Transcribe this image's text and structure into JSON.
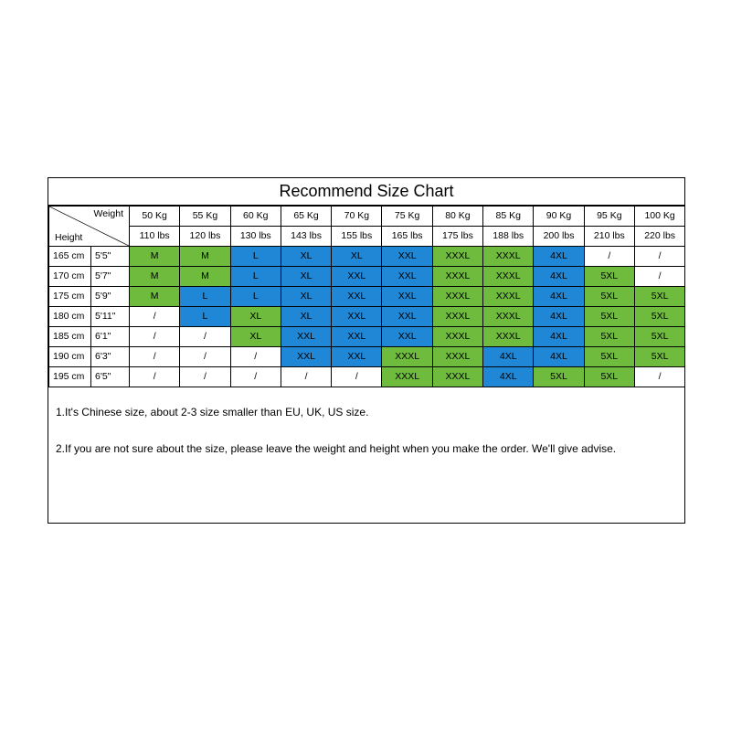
{
  "title": "Recommend Size Chart",
  "header_labels": {
    "weight": "Weight",
    "height": "Height"
  },
  "colors": {
    "green": "#6fbb3d",
    "blue": "#1f87d6",
    "border": "#000000",
    "background": "#ffffff",
    "text": "#000000"
  },
  "typography": {
    "title_fontsize_pt": 14,
    "cell_fontsize_pt": 8,
    "notes_fontsize_pt": 9,
    "font_family": "Arial"
  },
  "weights_kg": [
    "50 Kg",
    "55 Kg",
    "60 Kg",
    "65 Kg",
    "70 Kg",
    "75 Kg",
    "80 Kg",
    "85 Kg",
    "90 Kg",
    "95 Kg",
    "100 Kg"
  ],
  "weights_lbs": [
    "110 lbs",
    "120 lbs",
    "130 lbs",
    "143 lbs",
    "155 lbs",
    "165 lbs",
    "175 lbs",
    "188 lbs",
    "200 lbs",
    "210 lbs",
    "220 lbs"
  ],
  "heights": [
    {
      "cm": "165 cm",
      "ftin": "5'5\""
    },
    {
      "cm": "170 cm",
      "ftin": "5'7\""
    },
    {
      "cm": "175 cm",
      "ftin": "5'9\""
    },
    {
      "cm": "180 cm",
      "ftin": "5'11\""
    },
    {
      "cm": "185 cm",
      "ftin": "6'1\""
    },
    {
      "cm": "190 cm",
      "ftin": "6'3\""
    },
    {
      "cm": "195 cm",
      "ftin": "6'5\""
    }
  ],
  "cells": [
    [
      {
        "v": "M",
        "c": "g"
      },
      {
        "v": "M",
        "c": "g"
      },
      {
        "v": "L",
        "c": "b"
      },
      {
        "v": "XL",
        "c": "b"
      },
      {
        "v": "XL",
        "c": "b"
      },
      {
        "v": "XXL",
        "c": "b"
      },
      {
        "v": "XXXL",
        "c": "g"
      },
      {
        "v": "XXXL",
        "c": "g"
      },
      {
        "v": "4XL",
        "c": "b"
      },
      {
        "v": "/",
        "c": ""
      },
      {
        "v": "/",
        "c": ""
      }
    ],
    [
      {
        "v": "M",
        "c": "g"
      },
      {
        "v": "M",
        "c": "g"
      },
      {
        "v": "L",
        "c": "b"
      },
      {
        "v": "XL",
        "c": "b"
      },
      {
        "v": "XXL",
        "c": "b"
      },
      {
        "v": "XXL",
        "c": "b"
      },
      {
        "v": "XXXL",
        "c": "g"
      },
      {
        "v": "XXXL",
        "c": "g"
      },
      {
        "v": "4XL",
        "c": "b"
      },
      {
        "v": "5XL",
        "c": "g"
      },
      {
        "v": "/",
        "c": ""
      }
    ],
    [
      {
        "v": "M",
        "c": "g"
      },
      {
        "v": "L",
        "c": "b"
      },
      {
        "v": "L",
        "c": "b"
      },
      {
        "v": "XL",
        "c": "b"
      },
      {
        "v": "XXL",
        "c": "b"
      },
      {
        "v": "XXL",
        "c": "b"
      },
      {
        "v": "XXXL",
        "c": "g"
      },
      {
        "v": "XXXL",
        "c": "g"
      },
      {
        "v": "4XL",
        "c": "b"
      },
      {
        "v": "5XL",
        "c": "g"
      },
      {
        "v": "5XL",
        "c": "g"
      }
    ],
    [
      {
        "v": "/",
        "c": ""
      },
      {
        "v": "L",
        "c": "b"
      },
      {
        "v": "XL",
        "c": "g"
      },
      {
        "v": "XL",
        "c": "b"
      },
      {
        "v": "XXL",
        "c": "b"
      },
      {
        "v": "XXL",
        "c": "b"
      },
      {
        "v": "XXXL",
        "c": "g"
      },
      {
        "v": "XXXL",
        "c": "g"
      },
      {
        "v": "4XL",
        "c": "b"
      },
      {
        "v": "5XL",
        "c": "g"
      },
      {
        "v": "5XL",
        "c": "g"
      }
    ],
    [
      {
        "v": "/",
        "c": ""
      },
      {
        "v": "/",
        "c": ""
      },
      {
        "v": "XL",
        "c": "g"
      },
      {
        "v": "XXL",
        "c": "b"
      },
      {
        "v": "XXL",
        "c": "b"
      },
      {
        "v": "XXL",
        "c": "b"
      },
      {
        "v": "XXXL",
        "c": "g"
      },
      {
        "v": "XXXL",
        "c": "g"
      },
      {
        "v": "4XL",
        "c": "b"
      },
      {
        "v": "5XL",
        "c": "g"
      },
      {
        "v": "5XL",
        "c": "g"
      }
    ],
    [
      {
        "v": "/",
        "c": ""
      },
      {
        "v": "/",
        "c": ""
      },
      {
        "v": "/",
        "c": ""
      },
      {
        "v": "XXL",
        "c": "b"
      },
      {
        "v": "XXL",
        "c": "b"
      },
      {
        "v": "XXXL",
        "c": "g"
      },
      {
        "v": "XXXL",
        "c": "g"
      },
      {
        "v": "4XL",
        "c": "b"
      },
      {
        "v": "4XL",
        "c": "b"
      },
      {
        "v": "5XL",
        "c": "g"
      },
      {
        "v": "5XL",
        "c": "g"
      }
    ],
    [
      {
        "v": "/",
        "c": ""
      },
      {
        "v": "/",
        "c": ""
      },
      {
        "v": "/",
        "c": ""
      },
      {
        "v": "/",
        "c": ""
      },
      {
        "v": "/",
        "c": ""
      },
      {
        "v": "XXXL",
        "c": "g"
      },
      {
        "v": "XXXL",
        "c": "g"
      },
      {
        "v": "4XL",
        "c": "b"
      },
      {
        "v": "5XL",
        "c": "g"
      },
      {
        "v": "5XL",
        "c": "g"
      },
      {
        "v": "/",
        "c": ""
      }
    ]
  ],
  "notes": [
    "1.It's Chinese size, about 2-3 size smaller than EU, UK, US size.",
    "2.If you are not sure about the size, please leave the weight and height when you make the order. We'll give advise."
  ]
}
